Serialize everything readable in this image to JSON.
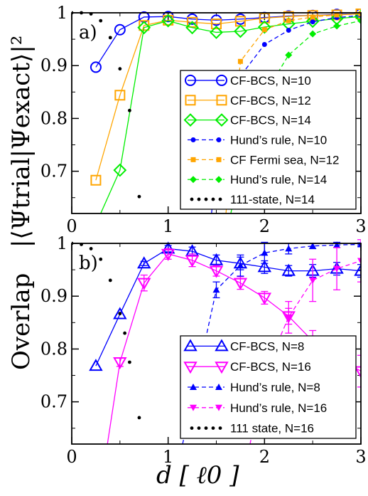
{
  "ylabel": {
    "prefix": "Overlap",
    "formula": "|⟨Ψtrial|Ψexact⟩|²"
  },
  "xlabel": "d [ ℓ0 ]",
  "chart_data": [
    {
      "type": "line",
      "panel": "a)",
      "xlim": [
        0,
        3
      ],
      "ylim": [
        0.62,
        1.0
      ],
      "xticks": [
        0,
        1,
        2,
        3
      ],
      "xtick_labels": [
        "0",
        "1",
        "2",
        "3"
      ],
      "yticks": [
        0.7,
        0.8,
        0.9,
        1.0
      ],
      "ytick_labels": [
        "0.7",
        "0.8",
        "0.9",
        "1"
      ],
      "legend_position": "lower-right",
      "series": [
        {
          "name": "CF-BCS, N=10",
          "color": "#0000ff",
          "marker": "circle-open",
          "line": "solid",
          "x": [
            0.25,
            0.5,
            0.75,
            1.0,
            1.25,
            1.5,
            1.75,
            2.0,
            2.25,
            2.5,
            2.75,
            3.0
          ],
          "y": [
            0.897,
            0.968,
            0.992,
            0.993,
            0.988,
            0.986,
            0.988,
            0.991,
            0.994,
            0.995,
            0.997,
            0.998
          ]
        },
        {
          "name": "CF-BCS, N=12",
          "color": "#ffa500",
          "marker": "square-open",
          "line": "solid",
          "x": [
            0.25,
            0.5,
            0.75,
            1.0,
            1.25,
            1.5,
            1.75,
            2.0,
            2.25,
            2.5,
            2.75,
            3.0
          ],
          "y": [
            0.683,
            0.844,
            0.976,
            0.986,
            0.982,
            0.979,
            0.984,
            0.99,
            0.993,
            0.995,
            0.996,
            0.998
          ]
        },
        {
          "name": "CF-BCS, N=14",
          "color": "#00ee00",
          "marker": "diamond-open",
          "line": "solid",
          "x": [
            0.3,
            0.5,
            0.75,
            1.0,
            1.25,
            1.5,
            1.75,
            2.0,
            2.25,
            2.5,
            2.75,
            3.0
          ],
          "y": [
            0.62,
            0.702,
            0.972,
            0.985,
            0.972,
            0.963,
            0.965,
            0.973,
            0.979,
            0.984,
            0.989,
            0.993
          ]
        },
        {
          "name": "Hund’s rule, N=10",
          "color": "#0000ff",
          "marker": "circle-filled",
          "line": "dashed",
          "x": [
            1.45,
            1.5,
            1.75,
            2.0,
            2.25,
            2.5,
            2.75,
            3.0
          ],
          "y": [
            0.62,
            0.7,
            0.88,
            0.94,
            0.967,
            0.983,
            0.991,
            0.995
          ]
        },
        {
          "name": "CF Fermi sea, N=12",
          "color": "#ffa500",
          "marker": "square-filled",
          "line": "dashed",
          "x": [
            1.6,
            1.75,
            2.0,
            2.25,
            2.5,
            2.75,
            3.0
          ],
          "y": [
            0.62,
            0.908,
            0.968,
            0.985,
            0.992,
            0.996,
            0.998
          ]
        },
        {
          "name": "Hund’s rule, N=14",
          "color": "#00ee00",
          "marker": "diamond-filled",
          "line": "dashed",
          "x": [
            1.65,
            1.75,
            2.0,
            2.25,
            2.5,
            2.75,
            3.0
          ],
          "y": [
            0.62,
            0.7,
            0.845,
            0.92,
            0.96,
            0.975,
            0.985
          ]
        },
        {
          "name": "111-state, N=14",
          "color": "#000000",
          "marker": "dot",
          "line": "dotted",
          "x": [
            0.0,
            0.1,
            0.2,
            0.3,
            0.4,
            0.5,
            0.6,
            0.7,
            0.8
          ],
          "y": [
            1.0,
            1.0,
            0.998,
            0.985,
            0.953,
            0.894,
            0.815,
            0.652,
            0.62
          ]
        }
      ]
    },
    {
      "type": "line",
      "panel": "b)",
      "xlim": [
        0,
        3
      ],
      "ylim": [
        0.62,
        1.0
      ],
      "xticks": [
        0,
        1,
        2,
        3
      ],
      "xtick_labels": [
        "0",
        "1",
        "2",
        "3"
      ],
      "yticks": [
        0.7,
        0.8,
        0.9,
        1.0
      ],
      "ytick_labels": [
        "0.7",
        "0.8",
        "0.9",
        "1"
      ],
      "legend_position": "lower-right",
      "series": [
        {
          "name": "CF-BCS, N=8",
          "color": "#0000ff",
          "marker": "triangle-up-open",
          "line": "solid",
          "x": [
            0.25,
            0.5,
            0.75,
            1.0,
            1.25,
            1.5,
            1.75,
            2.0,
            2.25,
            2.5,
            2.75,
            3.0
          ],
          "y": [
            0.768,
            0.866,
            0.962,
            0.99,
            0.985,
            0.968,
            0.962,
            0.955,
            0.948,
            0.948,
            0.952,
            0.948
          ],
          "err": [
            0,
            0,
            0.004,
            0.006,
            0.008,
            0.01,
            0.012,
            0.012,
            0.01,
            0.012,
            0.012,
            0.012
          ]
        },
        {
          "name": "CF-BCS, N=16",
          "color": "#ff00ff",
          "marker": "triangle-down-open",
          "line": "solid",
          "x": [
            0.37,
            0.5,
            0.75,
            1.0,
            1.25,
            1.5,
            1.75,
            2.0,
            2.25,
            2.5,
            2.75,
            3.0
          ],
          "y": [
            0.62,
            0.775,
            0.925,
            0.98,
            0.968,
            0.948,
            0.925,
            0.897,
            0.862,
            0.815,
            0.785,
            0.758
          ],
          "err": [
            0,
            0.008,
            0.015,
            0.01,
            0.012,
            0.01,
            0.012,
            0.012,
            0.015,
            0.02,
            0.03,
            0.03
          ]
        },
        {
          "name": "Hund’s rule, N=8",
          "color": "#0000ff",
          "marker": "triangle-up-filled",
          "line": "dashed",
          "x": [
            1.15,
            1.5,
            1.75,
            2.0,
            2.25,
            2.5,
            2.75,
            3.0
          ],
          "y": [
            0.62,
            0.912,
            0.958,
            0.982,
            0.99,
            0.995,
            0.997,
            0.998
          ],
          "err": [
            0,
            0.015,
            0.02,
            0.02,
            0.01,
            0.005,
            0.005,
            0.003
          ]
        },
        {
          "name": "Hund’s rule, N=16",
          "color": "#ff00ff",
          "marker": "triangle-down-filled",
          "line": "dashed",
          "x": [
            1.85,
            2.0,
            2.25,
            2.5,
            2.75,
            3.0
          ],
          "y": [
            0.62,
            0.755,
            0.86,
            0.93,
            0.952,
            0.967
          ],
          "err": [
            0,
            0.015,
            0.03,
            0.04,
            0.04,
            0.04
          ]
        },
        {
          "name": "111 state, N=16",
          "color": "#000000",
          "marker": "dot",
          "line": "dotted",
          "x": [
            0.0,
            0.1,
            0.2,
            0.3,
            0.4,
            0.5,
            0.55,
            0.6,
            0.7,
            0.75
          ],
          "y": [
            1.0,
            0.998,
            0.99,
            0.97,
            0.93,
            0.867,
            0.83,
            0.775,
            0.67,
            0.62
          ]
        }
      ]
    }
  ]
}
